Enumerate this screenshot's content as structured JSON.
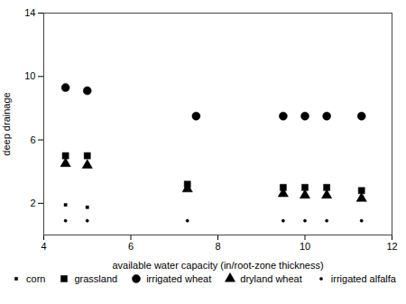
{
  "chart_data": {
    "type": "scatter",
    "xlabel": "available water capacity (in/root-zone thickness)",
    "ylabel": "deep drainage",
    "xlim": [
      4.0,
      12.0
    ],
    "ylim": [
      0.0,
      14.0
    ],
    "xticks": [
      4,
      6,
      8,
      10,
      12
    ],
    "yticks": [
      2,
      6,
      10,
      14
    ],
    "legend": "bottom",
    "series": [
      {
        "name": "corn",
        "marker": "square",
        "color": "black",
        "x": [
          4.5,
          5.0
        ],
        "values": [
          1.9,
          1.75
        ]
      },
      {
        "name": "grassland",
        "marker": "square",
        "color": "black",
        "x": [
          4.5,
          5.0,
          7.3,
          9.5,
          10.0,
          10.5,
          11.3
        ],
        "values": [
          5.0,
          5.0,
          3.2,
          3.0,
          3.0,
          3.0,
          2.8
        ]
      },
      {
        "name": "irrigated wheat",
        "marker": "circle",
        "color": "black",
        "x": [
          4.5,
          5.0,
          7.5,
          9.5,
          10.0,
          10.5,
          11.3
        ],
        "values": [
          9.3,
          9.1,
          7.5,
          7.5,
          7.5,
          7.5,
          7.5
        ]
      },
      {
        "name": "dryland wheat",
        "marker": "triangle",
        "color": "black",
        "x": [
          4.5,
          5.0,
          7.3,
          9.5,
          10.0,
          10.5,
          11.3
        ],
        "values": [
          4.5,
          4.4,
          2.9,
          2.6,
          2.5,
          2.5,
          2.3
        ]
      },
      {
        "name": "irrigated alfalfa",
        "marker": "point",
        "color": "black",
        "x": [
          4.5,
          5.0,
          7.3,
          9.5,
          10.0,
          10.5,
          11.3
        ],
        "values": [
          0.9,
          0.9,
          0.9,
          0.9,
          0.9,
          0.9,
          0.9
        ]
      }
    ]
  }
}
